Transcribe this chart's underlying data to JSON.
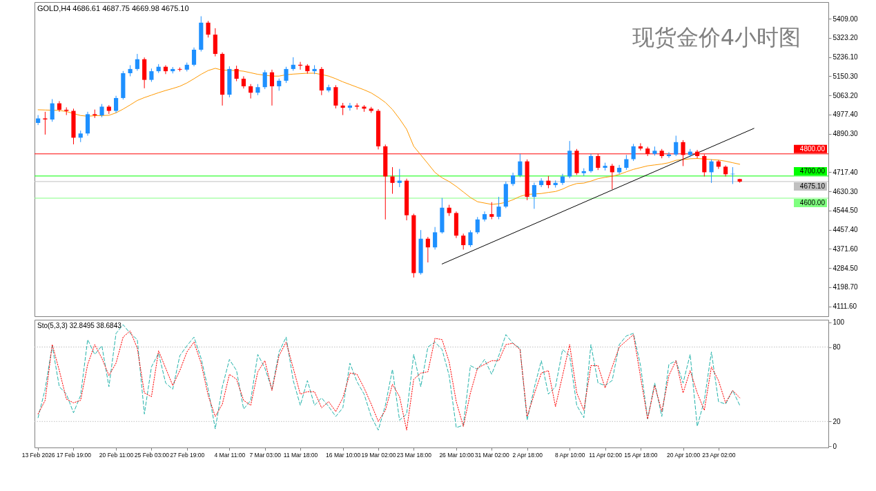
{
  "chart_data": [
    {
      "type": "candlestick",
      "title": "现货金价4小时图",
      "annotations": [
        "GOLD,H4  4686.61 4687.75 4669.98 4675.10"
      ],
      "ohlc": [
        [
          4940,
          4975,
          4930,
          4960
        ],
        [
          4960,
          4990,
          4887,
          4955
        ],
        [
          4955,
          5047,
          4945,
          5028
        ],
        [
          5028,
          5038,
          4990,
          4999
        ],
        [
          4999,
          5010,
          4975,
          4994
        ],
        [
          4994,
          5004,
          4843,
          4873
        ],
        [
          4873,
          4905,
          4853,
          4892
        ],
        [
          4892,
          4990,
          4882,
          4979
        ],
        [
          4979,
          5000,
          4962,
          4974
        ],
        [
          4974,
          5025,
          4965,
          5013
        ],
        [
          5013,
          5020,
          4980,
          4994
        ],
        [
          4994,
          5062,
          4985,
          5052
        ],
        [
          5052,
          5174,
          5045,
          5164
        ],
        [
          5164,
          5200,
          5150,
          5183
        ],
        [
          5183,
          5251,
          5175,
          5227
        ],
        [
          5227,
          5235,
          5096,
          5134
        ],
        [
          5134,
          5185,
          5125,
          5173
        ],
        [
          5173,
          5205,
          5165,
          5193
        ],
        [
          5193,
          5200,
          5160,
          5173
        ],
        [
          5173,
          5192,
          5163,
          5183
        ],
        [
          5183,
          5190,
          5172,
          5180
        ],
        [
          5180,
          5212,
          5172,
          5202
        ],
        [
          5202,
          5280,
          5195,
          5270
        ],
        [
          5270,
          5421,
          5262,
          5392
        ],
        [
          5392,
          5400,
          5325,
          5338
        ],
        [
          5338,
          5367,
          5240,
          5251
        ],
        [
          5251,
          5258,
          5018,
          5067
        ],
        [
          5067,
          5195,
          5055,
          5183
        ],
        [
          5183,
          5198,
          5128,
          5139
        ],
        [
          5139,
          5150,
          5095,
          5105
        ],
        [
          5105,
          5115,
          5050,
          5076
        ],
        [
          5076,
          5115,
          5065,
          5101
        ],
        [
          5101,
          5178,
          5092,
          5168
        ],
        [
          5168,
          5180,
          5018,
          5105
        ],
        [
          5105,
          5140,
          5085,
          5130
        ],
        [
          5130,
          5193,
          5120,
          5183
        ],
        [
          5183,
          5236,
          5175,
          5202
        ],
        [
          5202,
          5215,
          5180,
          5198
        ],
        [
          5198,
          5205,
          5162,
          5173
        ],
        [
          5173,
          5200,
          5160,
          5183
        ],
        [
          5183,
          5192,
          5065,
          5086
        ],
        [
          5086,
          5112,
          5078,
          5101
        ],
        [
          5101,
          5110,
          5005,
          5018
        ],
        [
          5018,
          5030,
          4975,
          5008
        ],
        [
          5008,
          5030,
          4995,
          5018
        ],
        [
          5018,
          5028,
          5000,
          5013
        ],
        [
          5013,
          5020,
          4990,
          5004
        ],
        [
          5004,
          5012,
          4985,
          4994
        ],
        [
          4994,
          5002,
          4820,
          4834
        ],
        [
          4834,
          4842,
          4504,
          4698
        ],
        [
          4698,
          4740,
          4620,
          4669
        ],
        [
          4669,
          4732,
          4650,
          4679
        ],
        [
          4679,
          4688,
          4500,
          4523
        ],
        [
          4523,
          4530,
          4242,
          4262
        ],
        [
          4262,
          4456,
          4255,
          4417
        ],
        [
          4417,
          4425,
          4310,
          4378
        ],
        [
          4378,
          4470,
          4368,
          4446
        ],
        [
          4446,
          4601,
          4440,
          4557
        ],
        [
          4557,
          4570,
          4520,
          4533
        ],
        [
          4533,
          4540,
          4420,
          4431
        ],
        [
          4431,
          4440,
          4368,
          4388
        ],
        [
          4388,
          4455,
          4380,
          4446
        ],
        [
          4446,
          4515,
          4438,
          4504
        ],
        [
          4504,
          4540,
          4495,
          4528
        ],
        [
          4528,
          4582,
          4505,
          4516
        ],
        [
          4516,
          4606,
          4505,
          4562
        ],
        [
          4562,
          4675,
          4555,
          4664
        ],
        [
          4664,
          4715,
          4655,
          4703
        ],
        [
          4703,
          4800,
          4695,
          4766
        ],
        [
          4766,
          4775,
          4591,
          4606
        ],
        [
          4606,
          4670,
          4552,
          4659
        ],
        [
          4659,
          4690,
          4650,
          4679
        ],
        [
          4679,
          4700,
          4645,
          4659
        ],
        [
          4659,
          4680,
          4648,
          4669
        ],
        [
          4669,
          4710,
          4660,
          4698
        ],
        [
          4698,
          4858,
          4690,
          4814
        ],
        [
          4814,
          4822,
          4705,
          4713
        ],
        [
          4713,
          4735,
          4700,
          4722
        ],
        [
          4722,
          4800,
          4715,
          4790
        ],
        [
          4790,
          4800,
          4727,
          4737
        ],
        [
          4737,
          4760,
          4725,
          4746
        ],
        [
          4746,
          4755,
          4640,
          4717
        ],
        [
          4717,
          4750,
          4708,
          4737
        ],
        [
          4737,
          4795,
          4728,
          4776
        ],
        [
          4776,
          4845,
          4768,
          4834
        ],
        [
          4834,
          4848,
          4815,
          4824
        ],
        [
          4824,
          4832,
          4790,
          4800
        ],
        [
          4800,
          4833,
          4792,
          4814
        ],
        [
          4814,
          4822,
          4780,
          4790
        ],
        [
          4790,
          4808,
          4782,
          4797
        ],
        [
          4797,
          4882,
          4790,
          4853
        ],
        [
          4853,
          4862,
          4745,
          4795
        ],
        [
          4795,
          4822,
          4785,
          4810
        ],
        [
          4810,
          4818,
          4780,
          4790
        ],
        [
          4790,
          4798,
          4698,
          4717
        ],
        [
          4717,
          4775,
          4669,
          4766
        ],
        [
          4766,
          4772,
          4732,
          4742
        ],
        [
          4742,
          4748,
          4698,
          4708
        ],
        [
          4708,
          4740,
          4664,
          4710
        ],
        [
          4686.61,
          4687.75,
          4669.98,
          4675.1
        ],
        null,
        null,
        null,
        null,
        null,
        null,
        null,
        null,
        null,
        null,
        null,
        null
      ],
      "colors": [
        "#1e90ff",
        "#ff0000",
        "#1e90ff",
        "#ff0000",
        "#ff0000",
        "#ff0000",
        "#1e90ff",
        "#1e90ff",
        "#ff0000",
        "#1e90ff",
        "#ff0000",
        "#1e90ff",
        "#1e90ff",
        "#1e90ff",
        "#1e90ff",
        "#ff0000",
        "#1e90ff",
        "#1e90ff",
        "#ff0000",
        "#1e90ff",
        "#ff0000",
        "#1e90ff",
        "#1e90ff",
        "#1e90ff",
        "#ff0000",
        "#ff0000",
        "#ff0000",
        "#1e90ff",
        "#ff0000",
        "#ff0000",
        "#ff0000",
        "#1e90ff",
        "#1e90ff",
        "#ff0000",
        "#1e90ff",
        "#1e90ff",
        "#1e90ff",
        "#ff0000",
        "#ff0000",
        "#1e90ff",
        "#ff0000",
        "#1e90ff",
        "#ff0000",
        "#ff0000",
        "#1e90ff",
        "#ff0000",
        "#ff0000",
        "#ff0000",
        "#ff0000",
        "#ff0000",
        "#ff0000",
        "#1e90ff",
        "#ff0000",
        "#ff0000",
        "#1e90ff",
        "#ff0000",
        "#1e90ff",
        "#1e90ff",
        "#ff0000",
        "#ff0000",
        "#ff0000",
        "#1e90ff",
        "#1e90ff",
        "#1e90ff",
        "#ff0000",
        "#1e90ff",
        "#1e90ff",
        "#1e90ff",
        "#1e90ff",
        "#ff0000",
        "#1e90ff",
        "#1e90ff",
        "#ff0000",
        "#1e90ff",
        "#1e90ff",
        "#1e90ff",
        "#ff0000",
        "#1e90ff",
        "#1e90ff",
        "#ff0000",
        "#1e90ff",
        "#ff0000",
        "#1e90ff",
        "#1e90ff",
        "#1e90ff",
        "#ff0000",
        "#ff0000",
        "#1e90ff",
        "#ff0000",
        "#1e90ff",
        "#1e90ff",
        "#ff0000",
        "#1e90ff",
        "#ff0000",
        "#ff0000",
        "#1e90ff",
        "#ff0000",
        "#ff0000",
        "#1e90ff",
        "#ff0000",
        null,
        null,
        null,
        null,
        null,
        null,
        null,
        null,
        null,
        null,
        null,
        null
      ],
      "series": [
        {
          "type": "line",
          "color": "#ff9900",
          "values": [
            4999,
            4998,
            4997,
            4996,
            4991,
            4982,
            4973,
            4970,
            4972,
            4973,
            4974,
            4985,
            5002,
            5021,
            5041,
            5054,
            5065,
            5076,
            5086,
            5095,
            5105,
            5120,
            5139,
            5159,
            5176,
            5186,
            5178,
            5177,
            5176,
            5173,
            5166,
            5159,
            5155,
            5151,
            5151,
            5157,
            5160,
            5162,
            5164,
            5164,
            5158,
            5151,
            5139,
            5125,
            5113,
            5101,
            5089,
            5075,
            5055,
            5032,
            5000,
            4958,
            4911,
            4834,
            4795,
            4756,
            4716,
            4692,
            4675,
            4653,
            4628,
            4603,
            4584,
            4578,
            4572,
            4575,
            4581,
            4593,
            4608,
            4617,
            4619,
            4621,
            4626,
            4630,
            4641,
            4656,
            4666,
            4668,
            4677,
            4688,
            4694,
            4699,
            4707,
            4719,
            4730,
            4738,
            4746,
            4750,
            4754,
            4760,
            4771,
            4774,
            4778,
            4779,
            4777,
            4774,
            4772,
            4767,
            4760,
            4753,
            null,
            null,
            null,
            null,
            null,
            null,
            null,
            null,
            null,
            null,
            null,
            null
          ]
        },
        {
          "type": "line",
          "color": "#000000",
          "values": [
            null,
            null,
            null,
            null,
            null,
            null,
            null,
            null,
            null,
            null,
            null,
            null,
            null,
            null,
            null,
            null,
            null,
            null,
            null,
            null,
            null,
            null,
            null,
            null,
            null,
            null,
            null,
            null,
            null,
            null,
            null,
            null,
            null,
            null,
            null,
            null,
            null,
            null,
            null,
            null,
            null,
            null,
            null,
            null,
            null,
            null,
            null,
            null,
            null,
            null,
            null,
            null,
            null,
            null,
            null,
            null,
            null,
            4303,
            null,
            null,
            null,
            null,
            null,
            null,
            null,
            null,
            null,
            null,
            null,
            null,
            null,
            null,
            null,
            null,
            null,
            null,
            null,
            null,
            null,
            null,
            null,
            null,
            null,
            null,
            null,
            null,
            null,
            null,
            null,
            null,
            null,
            null,
            null,
            null,
            null,
            null,
            null,
            null,
            null,
            null,
            null,
            4915,
            null,
            null,
            null,
            null,
            null,
            null,
            null,
            null,
            null,
            null
          ]
        }
      ],
      "ylim": [
        4067,
        5485
      ],
      "yticks": [
        {
          "value": 4111.6,
          "label": "4111.60"
        },
        {
          "value": 4198.7,
          "label": "4198.70"
        },
        {
          "value": 4284.5,
          "label": "4284.50"
        },
        {
          "value": 4371.6,
          "label": "4371.60"
        },
        {
          "value": 4457.4,
          "label": "4457.40"
        },
        {
          "value": 4544.5,
          "label": "4544.50"
        },
        {
          "value": 4630.3,
          "label": "4630.30"
        },
        {
          "value": 4717.4,
          "label": "4717.40"
        },
        {
          "value": 4890.3,
          "label": "4890.30"
        },
        {
          "value": 4977.4,
          "label": "4977.40"
        },
        {
          "value": 5063.2,
          "label": "5063.20"
        },
        {
          "value": 5150.3,
          "label": "5150.30"
        },
        {
          "value": 5236.1,
          "label": "5236.10"
        },
        {
          "value": 5323.2,
          "label": "5323.20"
        },
        {
          "value": 5409,
          "label": "5409.00"
        }
      ],
      "tick_labels": "y",
      "ref_lines": [
        {
          "axis": "y",
          "value": 4800,
          "label": "4800.00",
          "color": "#ff0000"
        },
        {
          "axis": "y",
          "value": 4675.1,
          "label": "4675.10",
          "color": "#c0c0c0"
        },
        {
          "axis": "y",
          "value": 4700,
          "label": "4700.00",
          "color": "#00ff00"
        },
        {
          "axis": "y",
          "value": 4600,
          "label": "4600.00",
          "color": "#80ff80"
        }
      ]
    },
    {
      "type": "line",
      "title": "Sto(5,3,3) 32.8495 38.6843",
      "categories": [
        "13 Feb 2026",
        null,
        null,
        null,
        null,
        "17 Feb 19:00",
        null,
        null,
        null,
        null,
        null,
        "20 Feb 11:00",
        null,
        null,
        null,
        null,
        "25 Feb 03:00",
        null,
        null,
        null,
        null,
        "27 Feb 19:00",
        null,
        null,
        null,
        null,
        null,
        "4 Mar 11:00",
        null,
        null,
        null,
        null,
        "7 Mar 03:00",
        null,
        null,
        null,
        null,
        "11 Mar 18:00",
        null,
        null,
        null,
        null,
        null,
        "16 Mar 10:00",
        null,
        null,
        null,
        null,
        "19 Mar 02:00",
        null,
        null,
        null,
        null,
        "23 Mar 18:00",
        null,
        null,
        null,
        null,
        null,
        "26 Mar 10:00",
        null,
        null,
        null,
        null,
        "31 Mar 02:00",
        null,
        null,
        null,
        null,
        "2 Apr 18:00",
        null,
        null,
        null,
        null,
        null,
        "8 Apr 10:00",
        null,
        null,
        null,
        null,
        "11 Apr 02:00",
        null,
        null,
        null,
        null,
        "15 Apr 18:00",
        null,
        null,
        null,
        null,
        null,
        "20 Apr 10:00",
        null,
        null,
        null,
        null,
        "23 Apr 02:00",
        null,
        null,
        null,
        null,
        null,
        null,
        null,
        null,
        null,
        null,
        null,
        null,
        null,
        null,
        null
      ],
      "series": [
        {
          "color": "#20b2aa",
          "line_style": "dashed",
          "values": [
            23,
            46,
            81,
            48,
            42,
            27,
            41,
            86,
            74,
            81,
            48,
            91,
            98,
            91,
            86,
            26,
            64,
            75,
            51,
            46,
            73,
            81,
            88,
            71,
            46,
            14,
            48,
            70,
            61,
            30,
            37,
            74,
            63,
            46,
            76,
            88,
            53,
            33,
            53,
            33,
            39,
            32,
            24,
            31,
            67,
            52,
            42,
            24,
            13,
            33,
            62,
            21,
            26,
            74,
            48,
            80,
            84,
            78,
            57,
            15,
            17,
            65,
            62,
            70,
            58,
            73,
            90,
            83,
            79,
            21,
            47,
            69,
            42,
            48,
            78,
            73,
            33,
            23,
            82,
            51,
            49,
            53,
            82,
            89,
            91,
            65,
            22,
            51,
            24,
            66,
            69,
            51,
            74,
            16,
            37,
            76,
            36,
            34,
            45,
            33,
            null,
            null,
            null,
            null,
            null,
            null,
            null,
            null,
            null,
            null,
            null,
            null
          ]
        },
        {
          "color": "#ff0000",
          "line_style": "dotted",
          "values": [
            26,
            37,
            82,
            61,
            38,
            35,
            37,
            66,
            82,
            71,
            57,
            67,
            88,
            93,
            79,
            43,
            40,
            77,
            63,
            49,
            61,
            76,
            84,
            67,
            41,
            24,
            34,
            58,
            54,
            37,
            33,
            60,
            69,
            45,
            73,
            84,
            63,
            42,
            44,
            44,
            31,
            36,
            28,
            39,
            59,
            58,
            47,
            34,
            20,
            29,
            50,
            40,
            13,
            54,
            59,
            60,
            87,
            86,
            68,
            36,
            16,
            43,
            63,
            66,
            69,
            69,
            82,
            83,
            78,
            24,
            42,
            59,
            61,
            32,
            57,
            82,
            43,
            29,
            65,
            65,
            47,
            64,
            80,
            85,
            90,
            56,
            22,
            49,
            28,
            57,
            69,
            43,
            61,
            43,
            29,
            64,
            53,
            35,
            45,
            39,
            null,
            null,
            null,
            null,
            null,
            null,
            null,
            null,
            null,
            null,
            null,
            null
          ]
        }
      ],
      "ylim": [
        -1,
        102
      ],
      "yticks": [
        0,
        20,
        80,
        100
      ],
      "ref_lines": [
        {
          "axis": "y",
          "value": 20,
          "color": "#c0c0c0",
          "line_style": "dotted"
        },
        {
          "axis": "y",
          "value": 80,
          "color": "#c0c0c0",
          "line_style": "dotted"
        }
      ]
    }
  ]
}
